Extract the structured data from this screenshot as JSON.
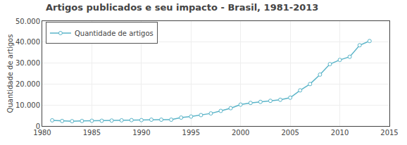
{
  "chart_data": {
    "type": "line",
    "title": "Artigos publicados e seu impacto - Brasil, 1981-2013",
    "ylabel": "Quantidade de artigos",
    "x": [
      1981,
      1982,
      1983,
      1984,
      1985,
      1986,
      1987,
      1988,
      1989,
      1990,
      1991,
      1992,
      1993,
      1994,
      1995,
      1996,
      1997,
      1998,
      1999,
      2000,
      2001,
      2002,
      2003,
      2004,
      2005,
      2006,
      2007,
      2008,
      2009,
      2010,
      2011,
      2012,
      2013
    ],
    "series": [
      {
        "name": "Quantidade de artigos",
        "color": "#5ab4c8",
        "marker": "circle",
        "values": [
          2700,
          2400,
          2300,
          2400,
          2500,
          2500,
          2600,
          2700,
          2800,
          2800,
          3000,
          3000,
          3000,
          4000,
          4500,
          5200,
          6000,
          7200,
          8500,
          10200,
          11000,
          11500,
          12000,
          12500,
          13500,
          17000,
          20000,
          24500,
          29500,
          31500,
          33000,
          38500,
          40500
        ]
      }
    ],
    "xlim": [
      1980,
      2015
    ],
    "ylim": [
      0,
      50000
    ],
    "xticks": [
      1980,
      1985,
      1990,
      1995,
      2000,
      2005,
      2010,
      2015
    ],
    "yticks": [
      0,
      {
        "value": 10000,
        "label": "10.000"
      },
      {
        "value": 20000,
        "label": "20.000"
      },
      {
        "value": 30000,
        "label": "30.000"
      },
      {
        "value": 40000,
        "label": "40.000"
      },
      {
        "value": 50000,
        "label": "50.000"
      }
    ],
    "grid": true,
    "legend": "upper left"
  }
}
